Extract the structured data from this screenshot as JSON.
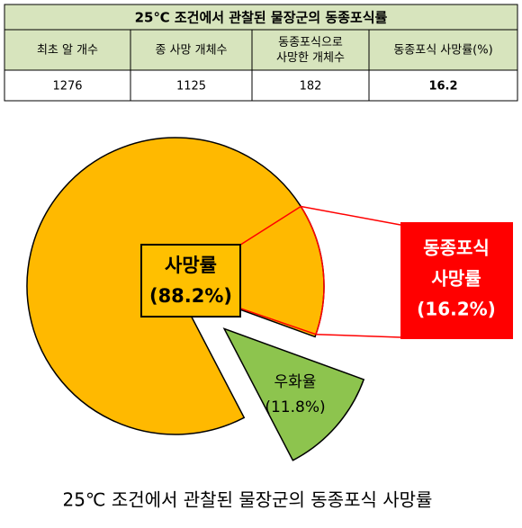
{
  "table": {
    "title": "25℃ 조건에서 관찰된 물장군의 동종포식률",
    "headers": [
      [
        "최초 알 개수"
      ],
      [
        "종 사망 개체수"
      ],
      [
        "동종포식으로",
        "사망한 개체수"
      ],
      [
        "동종포식 사망률(%)"
      ]
    ],
    "rows": [
      [
        "1276",
        "1125",
        "182",
        "16.2"
      ]
    ]
  },
  "chart_data": {
    "type": "pie",
    "categories": [
      "사망률",
      "우화율"
    ],
    "values": [
      88.2,
      11.8
    ],
    "value_labels": [
      "(88.2%)",
      "(11.8%)"
    ],
    "colors": [
      "#ffb900",
      "#8dc44e"
    ],
    "highlight": {
      "lines": [
        "동종포식",
        "사망률"
      ],
      "value": 16.2,
      "value_label": "(16.2%)",
      "color": "#ff0000"
    }
  },
  "caption": "25℃ 조건에서 관찰된 물장군의 동종포식 사망률"
}
